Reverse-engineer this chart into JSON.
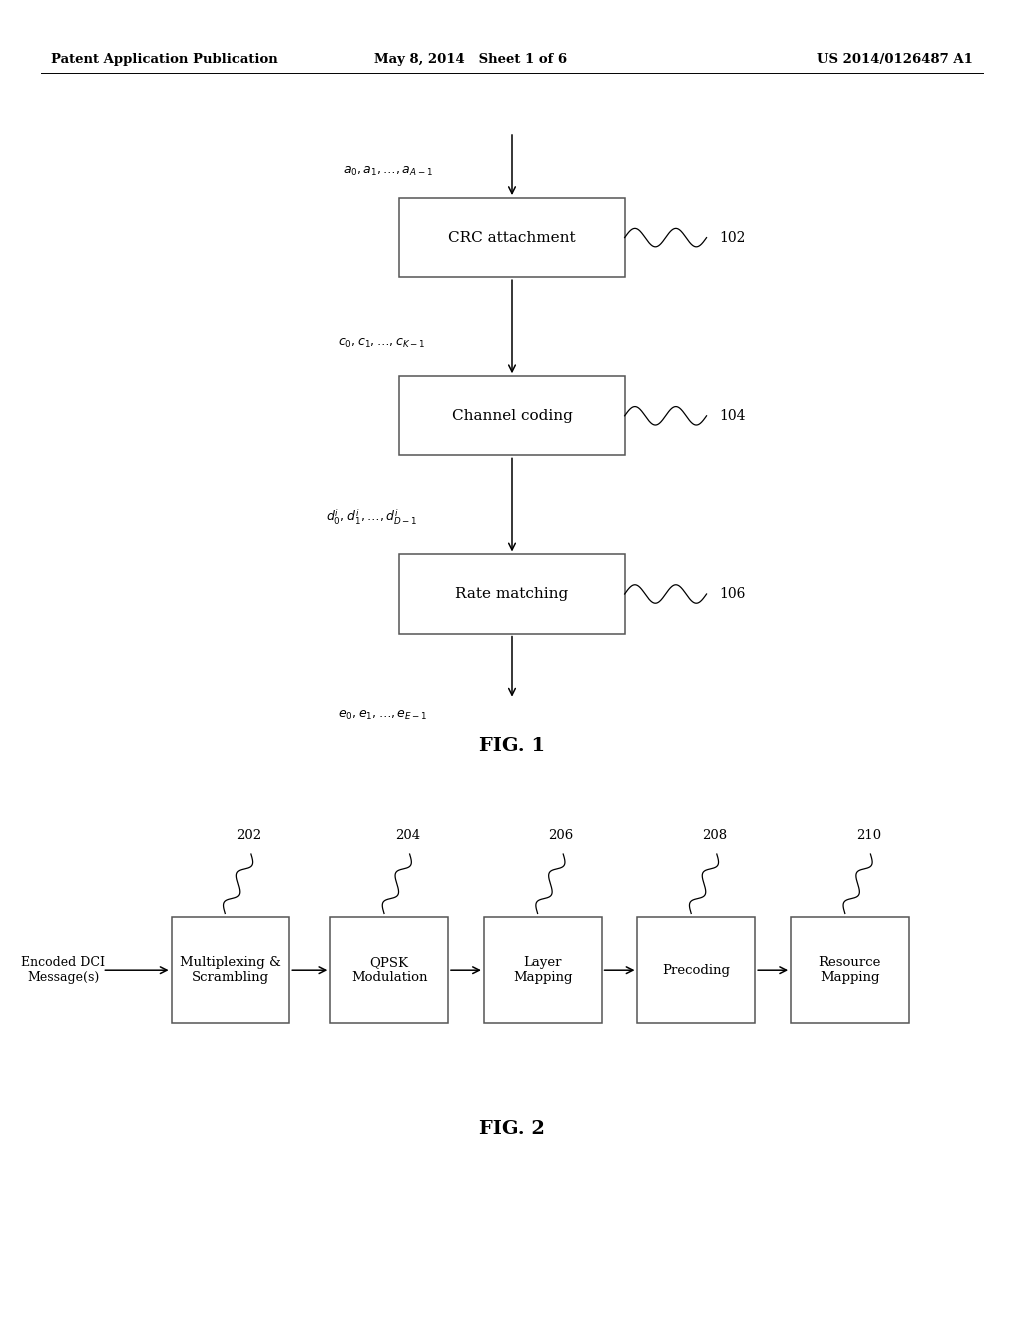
{
  "bg_color": "#ffffff",
  "header_left": "Patent Application Publication",
  "header_center": "May 8, 2014   Sheet 1 of 6",
  "header_right": "US 2014/0126487 A1",
  "fig1_title": "FIG. 1",
  "fig2_title": "FIG. 2",
  "fig1_boxes": [
    {
      "label": "CRC attachment",
      "ref": "102"
    },
    {
      "label": "Channel coding",
      "ref": "104"
    },
    {
      "label": "Rate matching",
      "ref": "106"
    }
  ],
  "fig1_ann": [
    "$a_0, a_1, \\ldots, a_{A-1}$",
    "$c_0, c_1, \\ldots, c_{K-1}$",
    "$d^i_0, d^i_1, \\ldots, d^i_{D-1}$",
    "$e_0, e_1, \\ldots, e_{E-1}$"
  ],
  "fig2_boxes": [
    {
      "label": "Multiplexing &\nScrambling",
      "ref": "202"
    },
    {
      "label": "QPSK\nModulation",
      "ref": "204"
    },
    {
      "label": "Layer\nMapping",
      "ref": "206"
    },
    {
      "label": "Precoding",
      "ref": "208"
    },
    {
      "label": "Resource\nMapping",
      "ref": "210"
    }
  ],
  "fig2_input": "Encoded DCI\nMessage(s)"
}
